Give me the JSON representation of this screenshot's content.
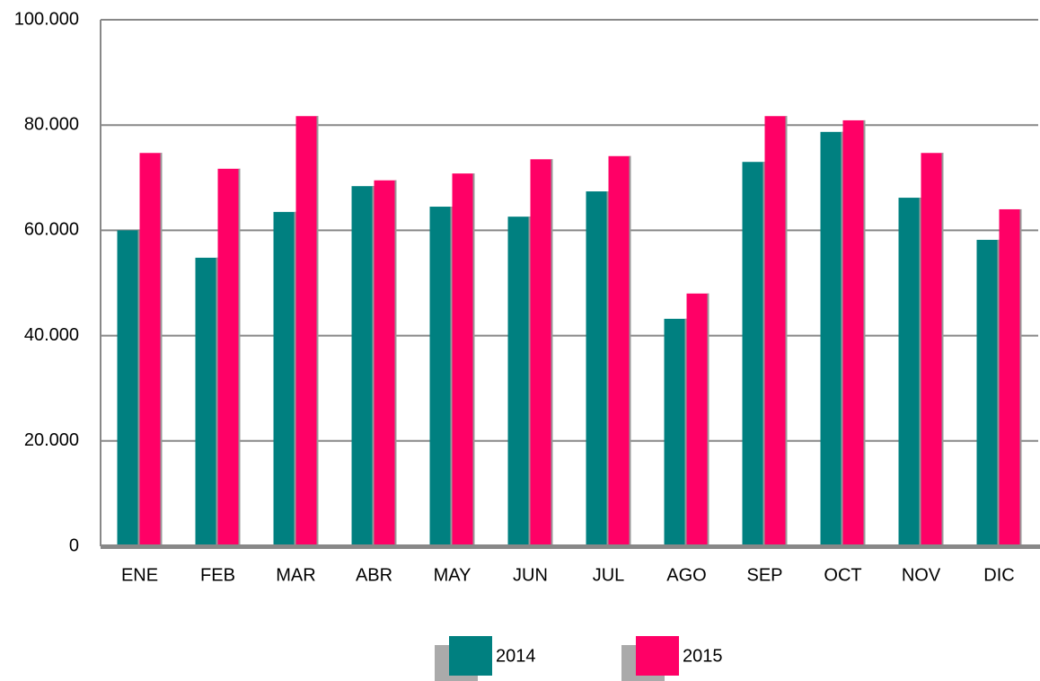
{
  "chart_data": {
    "type": "bar",
    "categories": [
      "ENE",
      "FEB",
      "MAR",
      "ABR",
      "MAY",
      "JUN",
      "JUL",
      "AGO",
      "SEP",
      "OCT",
      "NOV",
      "DIC"
    ],
    "series": [
      {
        "name": "2014",
        "color": "#008080",
        "values": [
          60000,
          54800,
          63500,
          68400,
          64500,
          62600,
          67400,
          43200,
          73000,
          78700,
          66200,
          58200
        ]
      },
      {
        "name": "2015",
        "color": "#ff0066",
        "values": [
          74700,
          71700,
          81700,
          69500,
          70800,
          73500,
          74100,
          48000,
          81700,
          80900,
          74700,
          64000
        ]
      }
    ],
    "ylim": [
      0,
      100000
    ],
    "yticks": [
      0,
      {
        "value": 20000,
        "label": "20.000"
      },
      {
        "value": 40000,
        "label": "40.000"
      },
      {
        "value": 60000,
        "label": "60.000"
      },
      {
        "value": 80000,
        "label": "80.000"
      },
      {
        "value": 100000,
        "label": "100.000"
      }
    ],
    "grid": true
  }
}
